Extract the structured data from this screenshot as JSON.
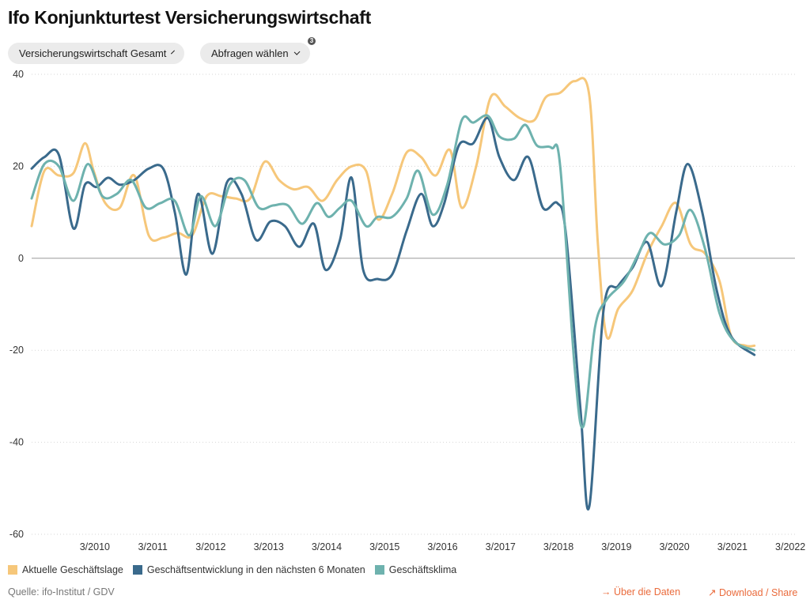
{
  "title": "Ifo Konjunkturtest Versicherungswirtschaft",
  "controls": {
    "dropdown_1": "Versicherungswirtschaft Gesamt",
    "dropdown_2": "Abfragen wählen",
    "dropdown_2_badge": "3"
  },
  "footer": {
    "source": "Quelle: ifo-Institut / GDV",
    "link_data": "Über die Daten",
    "link_download": "Download / Share",
    "link_data_icon": "arrow-right-icon",
    "link_download_icon": "arrow-up-right-icon"
  },
  "colors": {
    "lage": "#f6c77a",
    "entwicklung": "#3a6a8c",
    "klima": "#6eb2ae",
    "accent": "#ea6b3c"
  },
  "chart_data": {
    "type": "line",
    "xlim": [
      2009.08,
      2022.25
    ],
    "ylim": [
      -60,
      40
    ],
    "yticks": [
      40,
      20,
      0,
      -20,
      -40,
      -60
    ],
    "xticks": [
      {
        "x": 2010.17,
        "label": "3/2010"
      },
      {
        "x": 2011.17,
        "label": "3/2011"
      },
      {
        "x": 2012.17,
        "label": "3/2012"
      },
      {
        "x": 2013.17,
        "label": "3/2013"
      },
      {
        "x": 2014.17,
        "label": "3/2014"
      },
      {
        "x": 2015.17,
        "label": "3/2015"
      },
      {
        "x": 2016.17,
        "label": "3/2016"
      },
      {
        "x": 2017.17,
        "label": "3/2017"
      },
      {
        "x": 2018.17,
        "label": "3/2018"
      },
      {
        "x": 2019.17,
        "label": "3/2019"
      },
      {
        "x": 2020.17,
        "label": "3/2020"
      },
      {
        "x": 2021.17,
        "label": "3/2021"
      },
      {
        "x": 2022.17,
        "label": "3/2022"
      }
    ],
    "grid": "horizontal dotted",
    "legend": "bottom-left",
    "series": [
      {
        "name": "Aktuelle Geschäftslage",
        "color": "#f6c77a",
        "points": [
          [
            2009.08,
            7
          ],
          [
            2009.3,
            19
          ],
          [
            2009.55,
            18
          ],
          [
            2009.8,
            18.5
          ],
          [
            2010.0,
            25
          ],
          [
            2010.15,
            19
          ],
          [
            2010.35,
            12
          ],
          [
            2010.6,
            11
          ],
          [
            2010.85,
            18
          ],
          [
            2011.1,
            5
          ],
          [
            2011.35,
            4.5
          ],
          [
            2011.6,
            5.5
          ],
          [
            2011.85,
            5
          ],
          [
            2012.1,
            13.5
          ],
          [
            2012.35,
            13.5
          ],
          [
            2012.6,
            13
          ],
          [
            2012.85,
            13
          ],
          [
            2013.1,
            21
          ],
          [
            2013.35,
            17
          ],
          [
            2013.6,
            15
          ],
          [
            2013.85,
            15.5
          ],
          [
            2014.1,
            12.5
          ],
          [
            2014.35,
            17
          ],
          [
            2014.6,
            20
          ],
          [
            2014.85,
            19
          ],
          [
            2015.05,
            8.5
          ],
          [
            2015.3,
            14
          ],
          [
            2015.55,
            23
          ],
          [
            2015.8,
            22
          ],
          [
            2016.05,
            18
          ],
          [
            2016.3,
            23.5
          ],
          [
            2016.5,
            11
          ],
          [
            2016.75,
            20
          ],
          [
            2017.0,
            35
          ],
          [
            2017.25,
            33
          ],
          [
            2017.5,
            30.5
          ],
          [
            2017.75,
            30
          ],
          [
            2017.95,
            35
          ],
          [
            2018.2,
            36
          ],
          [
            2018.45,
            38.5
          ],
          [
            2018.7,
            35.5
          ],
          [
            2018.85,
            3
          ],
          [
            2019.0,
            -17
          ],
          [
            2019.2,
            -11
          ],
          [
            2019.45,
            -7
          ],
          [
            2019.7,
            1
          ],
          [
            2019.95,
            7
          ],
          [
            2020.2,
            12
          ],
          [
            2020.45,
            3
          ],
          [
            2020.7,
            1
          ],
          [
            2020.95,
            -5
          ],
          [
            2021.15,
            -17
          ],
          [
            2021.4,
            -19
          ],
          [
            2021.55,
            -19
          ]
        ]
      },
      {
        "name": "Geschäftsentwicklung in den nächsten 6 Monaten",
        "color": "#3a6a8c",
        "points": [
          [
            2009.08,
            19.5
          ],
          [
            2009.3,
            22
          ],
          [
            2009.55,
            22.5
          ],
          [
            2009.8,
            6.5
          ],
          [
            2010.0,
            16
          ],
          [
            2010.2,
            15.5
          ],
          [
            2010.4,
            17.5
          ],
          [
            2010.6,
            16
          ],
          [
            2010.85,
            17
          ],
          [
            2011.1,
            19.5
          ],
          [
            2011.35,
            19.5
          ],
          [
            2011.55,
            10
          ],
          [
            2011.75,
            -3.5
          ],
          [
            2011.95,
            14
          ],
          [
            2012.2,
            1
          ],
          [
            2012.45,
            16.5
          ],
          [
            2012.7,
            14
          ],
          [
            2012.95,
            4
          ],
          [
            2013.2,
            8
          ],
          [
            2013.45,
            7
          ],
          [
            2013.7,
            2.5
          ],
          [
            2013.95,
            7.5
          ],
          [
            2014.15,
            -2.5
          ],
          [
            2014.4,
            4
          ],
          [
            2014.6,
            17.5
          ],
          [
            2014.8,
            -2.5
          ],
          [
            2015.05,
            -4.5
          ],
          [
            2015.3,
            -3.5
          ],
          [
            2015.55,
            6
          ],
          [
            2015.8,
            14
          ],
          [
            2016.0,
            7
          ],
          [
            2016.2,
            12
          ],
          [
            2016.45,
            24.5
          ],
          [
            2016.7,
            25
          ],
          [
            2016.95,
            30.5
          ],
          [
            2017.15,
            22
          ],
          [
            2017.4,
            17
          ],
          [
            2017.65,
            22
          ],
          [
            2017.9,
            11
          ],
          [
            2018.15,
            12
          ],
          [
            2018.3,
            5
          ],
          [
            2018.55,
            -33
          ],
          [
            2018.7,
            -54
          ],
          [
            2018.95,
            -11
          ],
          [
            2019.2,
            -6
          ],
          [
            2019.45,
            -2
          ],
          [
            2019.7,
            3.5
          ],
          [
            2019.95,
            -6
          ],
          [
            2020.2,
            10
          ],
          [
            2020.4,
            20.5
          ],
          [
            2020.65,
            10
          ],
          [
            2020.9,
            -7
          ],
          [
            2021.15,
            -17
          ],
          [
            2021.55,
            -21
          ]
        ]
      },
      {
        "name": "Geschäftsklima",
        "color": "#6eb2ae",
        "points": [
          [
            2009.08,
            13
          ],
          [
            2009.3,
            20.5
          ],
          [
            2009.55,
            20
          ],
          [
            2009.8,
            12.5
          ],
          [
            2010.05,
            20.5
          ],
          [
            2010.3,
            13.5
          ],
          [
            2010.55,
            14
          ],
          [
            2010.8,
            17
          ],
          [
            2011.05,
            11
          ],
          [
            2011.3,
            12
          ],
          [
            2011.55,
            12.5
          ],
          [
            2011.8,
            5
          ],
          [
            2012.0,
            13.5
          ],
          [
            2012.25,
            7
          ],
          [
            2012.5,
            16
          ],
          [
            2012.75,
            17
          ],
          [
            2013.0,
            11
          ],
          [
            2013.25,
            11.5
          ],
          [
            2013.5,
            11.5
          ],
          [
            2013.75,
            7.5
          ],
          [
            2014.0,
            12
          ],
          [
            2014.2,
            9
          ],
          [
            2014.4,
            11
          ],
          [
            2014.6,
            12.5
          ],
          [
            2014.85,
            7
          ],
          [
            2015.05,
            9
          ],
          [
            2015.3,
            9
          ],
          [
            2015.55,
            13
          ],
          [
            2015.75,
            19
          ],
          [
            2016.0,
            9.5
          ],
          [
            2016.25,
            16
          ],
          [
            2016.5,
            30
          ],
          [
            2016.7,
            29.5
          ],
          [
            2016.95,
            31
          ],
          [
            2017.15,
            26.5
          ],
          [
            2017.4,
            26
          ],
          [
            2017.6,
            29
          ],
          [
            2017.8,
            24.5
          ],
          [
            2018.05,
            24
          ],
          [
            2018.2,
            20
          ],
          [
            2018.45,
            -24
          ],
          [
            2018.6,
            -36.5
          ],
          [
            2018.8,
            -15
          ],
          [
            2019.0,
            -9
          ],
          [
            2019.3,
            -5
          ],
          [
            2019.55,
            1
          ],
          [
            2019.75,
            5.5
          ],
          [
            2020.0,
            3
          ],
          [
            2020.25,
            5
          ],
          [
            2020.45,
            10.5
          ],
          [
            2020.7,
            2
          ],
          [
            2020.95,
            -12
          ],
          [
            2021.2,
            -18
          ],
          [
            2021.55,
            -20
          ]
        ]
      }
    ]
  }
}
